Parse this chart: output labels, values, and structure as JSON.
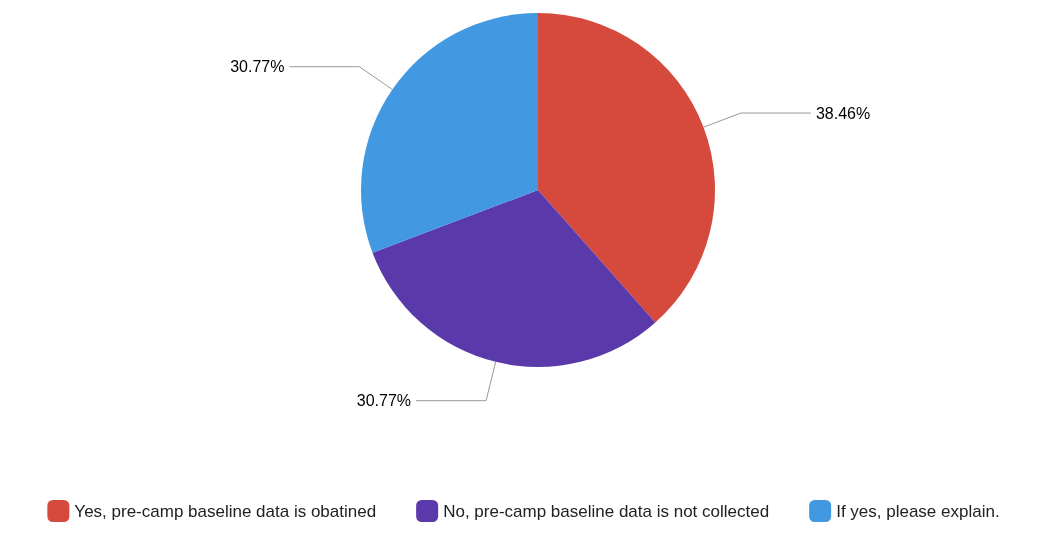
{
  "chart_data": {
    "type": "pie",
    "categories": [
      "Yes, pre-camp baseline data is obatined",
      "No, pre-camp baseline data is not collected",
      "If yes, please explain."
    ],
    "values": [
      38.46,
      30.77,
      30.77
    ],
    "colors": [
      "#d64a3e",
      "#5a3aab",
      "#4299e1"
    ],
    "value_labels": [
      "38.46%",
      "30.77%",
      "30.77%"
    ],
    "legend": "bottom"
  }
}
